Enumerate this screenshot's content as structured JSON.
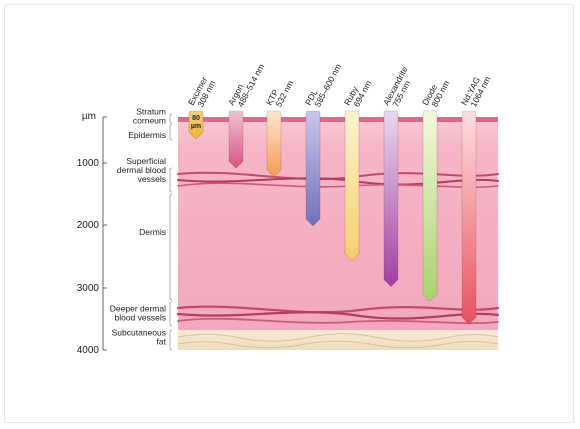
{
  "depth_axis": {
    "unit": "µm",
    "ticks": [
      "1000",
      "2000",
      "3000",
      "4000"
    ]
  },
  "layers": [
    {
      "label": "Stratum\ncorneum"
    },
    {
      "label": "Epidermis"
    },
    {
      "label": "Superficial\ndermal blood\nvessels"
    },
    {
      "label": "Dermis"
    },
    {
      "label": "Deeper dermal\nblood vessels"
    },
    {
      "label": "Subcutaneous\nfat"
    }
  ],
  "lasers": [
    {
      "name": "Excimer",
      "wavelength": "308 nm",
      "depth_um": 80,
      "badge": "80\nµm",
      "color_top": "#f7d17a",
      "color_bottom": "#f0b23a"
    },
    {
      "name": "Argon",
      "wavelength": "488–514 nm",
      "depth_um": 800,
      "color_top": "#f2c2d3",
      "color_bottom": "#d55384"
    },
    {
      "name": "KTP",
      "wavelength": "532 nm",
      "depth_um": 950,
      "color_top": "#fde7cf",
      "color_bottom": "#f49a55"
    },
    {
      "name": "PDL",
      "wavelength": "585–600 nm",
      "depth_um": 1800,
      "color_top": "#c9c7ec",
      "color_bottom": "#6f70b9"
    },
    {
      "name": "Ruby",
      "wavelength": "694 nm",
      "depth_um": 2400,
      "color_top": "#fff3cf",
      "color_bottom": "#f5cd6d"
    },
    {
      "name": "Alexandrite",
      "wavelength": "755 nm",
      "depth_um": 2850,
      "color_top": "#ead7ef",
      "color_bottom": "#a33fa2"
    },
    {
      "name": "Diode",
      "wavelength": "800 nm",
      "depth_um": 3100,
      "color_top": "#f4f8dc",
      "color_bottom": "#a9d36e"
    },
    {
      "name": "Nd:YAG",
      "wavelength": "1064 nm",
      "depth_um": 3500,
      "color_top": "#fde0e1",
      "color_bottom": "#e9505e"
    }
  ]
}
